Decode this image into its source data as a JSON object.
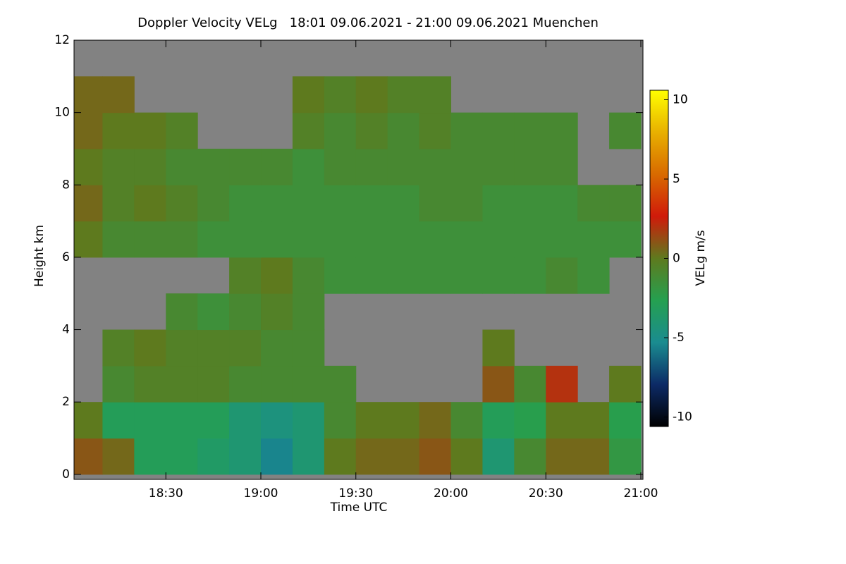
{
  "chart_data": {
    "type": "heatmap",
    "title": "Doppler Velocity VELg   18:01 09.06.2021 - 21:00 09.06.2021 Muenchen",
    "xlabel": "Time UTC",
    "ylabel": "Height km",
    "colorbar_label": "VELg m/s",
    "xlim": [
      "18:01",
      "21:00"
    ],
    "xticks": [
      "18:30",
      "19:00",
      "19:30",
      "20:00",
      "20:30",
      "21:00"
    ],
    "ylim": [
      -0.14,
      12
    ],
    "yticks": [
      0,
      2,
      4,
      6,
      8,
      10,
      12
    ],
    "clim": [
      -10.6,
      10.6
    ],
    "cticks": [
      -10,
      -5,
      0,
      5,
      10
    ],
    "colormap": [
      "#000000",
      "#0c2a66",
      "#1a8c90",
      "#25a050",
      "#5e7a1e",
      "#d01a0a",
      "#d86a00",
      "#e8b000",
      "#ffff00"
    ],
    "missing_color": "#828282",
    "x_edges": [
      "18:01",
      "18:10",
      "18:20",
      "18:30",
      "18:40",
      "18:50",
      "19:00",
      "19:10",
      "19:20",
      "19:30",
      "19:40",
      "19:50",
      "20:00",
      "20:10",
      "20:20",
      "20:30",
      "20:40",
      "20:50",
      "21:00"
    ],
    "y_edges": [
      0,
      1,
      2,
      3,
      4,
      5,
      6,
      7,
      8,
      9,
      10,
      11,
      12
    ],
    "z": [
      [
        1,
        0.5,
        -3,
        -3,
        -3.5,
        -4,
        -5.5,
        -4,
        0,
        0.5,
        0.5,
        1,
        0,
        -4,
        -1,
        0.5,
        0.5,
        -2
      ],
      [
        0,
        -3,
        -3,
        -3,
        -3,
        -4,
        -4.5,
        -4,
        -1,
        0,
        0,
        0.5,
        -1,
        -3,
        -2.5,
        0,
        0,
        -2.5
      ],
      [
        null,
        -1,
        -0.5,
        -0.5,
        -0.5,
        -1,
        -1,
        -1,
        -1,
        null,
        null,
        null,
        null,
        1,
        -1,
        2,
        null,
        0
      ],
      [
        null,
        -0.5,
        0,
        -0.5,
        -0.5,
        -0.5,
        -1,
        -1,
        null,
        null,
        null,
        null,
        null,
        0,
        null,
        null,
        null,
        null
      ],
      [
        null,
        null,
        null,
        -1,
        -1.5,
        -1,
        -0.5,
        -1,
        null,
        null,
        null,
        null,
        null,
        null,
        null,
        null,
        null,
        null
      ],
      [
        null,
        null,
        null,
        null,
        null,
        -0.5,
        0,
        -1,
        -1.5,
        -1.5,
        -1.5,
        -1.5,
        -1.5,
        -1.5,
        -1.5,
        -1,
        -1.5,
        null
      ],
      [
        0,
        -1,
        -1,
        -1,
        -1.5,
        -1.5,
        -1.5,
        -1.5,
        -1.5,
        -1.5,
        -1.5,
        -1.5,
        -1.5,
        -1.5,
        -1.5,
        -1.5,
        -1.5,
        -1.5
      ],
      [
        0.5,
        -0.5,
        0,
        -0.5,
        -1,
        -1.5,
        -1.5,
        -1.5,
        -1.5,
        -1.5,
        -1.5,
        -1,
        -1,
        -1.5,
        -1.5,
        -1.5,
        -1,
        -1
      ],
      [
        0,
        -0.5,
        -0.5,
        -1,
        -1,
        -1,
        -1,
        -1.5,
        -1,
        -1,
        -1,
        -1,
        -1,
        -1,
        -1,
        -1,
        null,
        null
      ],
      [
        0.5,
        0,
        0,
        -0.5,
        null,
        null,
        null,
        -0.5,
        -1,
        -0.5,
        -1,
        -0.5,
        -1,
        -1,
        -1,
        -1,
        null,
        -1
      ],
      [
        0.5,
        0.5,
        null,
        null,
        null,
        null,
        null,
        0,
        -0.5,
        0,
        -0.5,
        -0.5,
        null,
        null,
        null,
        null,
        null,
        null
      ],
      [
        null,
        null,
        null,
        null,
        null,
        null,
        null,
        null,
        null,
        null,
        null,
        null,
        null,
        null,
        null,
        null,
        null,
        null
      ]
    ]
  }
}
